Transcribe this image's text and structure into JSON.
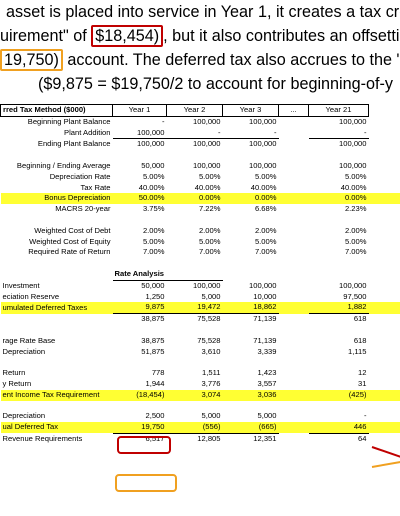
{
  "prose": {
    "line1": "asset is placed into service in Year 1, it creates a tax cre",
    "line2_pre": "uirement\" of ",
    "line2_box": "$18,454)",
    "line2_post": ", but it also contributes an offsettin",
    "line3_box": "19,750)",
    "line3_post": " account. The deferred tax also accrues to the \"A",
    "line4": "($9,875  =  $19,750/2  to  account  for  beginning-of-y"
  },
  "table": {
    "title": "rred Tax Method ($000)",
    "years": [
      "Year 1",
      "Year 2",
      "Year 3",
      "...",
      "Year 21"
    ],
    "rows": [
      {
        "label": "Beginning Plant Balance",
        "v": [
          "-",
          "100,000",
          "100,000",
          "",
          "100,000"
        ]
      },
      {
        "label": "Plant Addition",
        "v": [
          "100,000",
          "-",
          "-",
          "",
          "-"
        ]
      },
      {
        "label": "Ending Plant Balance",
        "v": [
          "100,000",
          "100,000",
          "100,000",
          "",
          "100,000"
        ]
      },
      {
        "label": "Beginning / Ending Average",
        "v": [
          "50,000",
          "100,000",
          "100,000",
          "",
          "100,000"
        ]
      },
      {
        "label": "Depreciation Rate",
        "v": [
          "5.00%",
          "5.00%",
          "5.00%",
          "",
          "5.00%"
        ]
      },
      {
        "label": "Tax Rate",
        "v": [
          "40.00%",
          "40.00%",
          "40.00%",
          "",
          "40.00%"
        ]
      },
      {
        "label": "Bonus Depreciation",
        "v": [
          "50.00%",
          "0.00%",
          "0.00%",
          "",
          "0.00%"
        ]
      },
      {
        "label": "MACRS 20-year",
        "v": [
          "3.75%",
          "7.22%",
          "6.68%",
          "",
          "2.23%"
        ]
      },
      {
        "label": "Weighted Cost of Debt",
        "v": [
          "2.00%",
          "2.00%",
          "2.00%",
          "",
          "2.00%"
        ]
      },
      {
        "label": "Weighted Cost of Equity",
        "v": [
          "5.00%",
          "5.00%",
          "5.00%",
          "",
          "5.00%"
        ]
      },
      {
        "label": "Required Rate of Return",
        "v": [
          "7.00%",
          "7.00%",
          "7.00%",
          "",
          "7.00%"
        ]
      }
    ],
    "rate_analysis": "Rate Analysis",
    "rows2": [
      {
        "label": "Investment",
        "v": [
          "50,000",
          "100,000",
          "100,000",
          "",
          "100,000"
        ]
      },
      {
        "label": "eciation Reserve",
        "v": [
          "1,250",
          "5,000",
          "10,000",
          "",
          "97,500"
        ]
      },
      {
        "label": "umulated Deferred Taxes",
        "v": [
          "9,875",
          "19,472",
          "18,862",
          "",
          "1,882"
        ]
      },
      {
        "label": "",
        "v": [
          "38,875",
          "75,528",
          "71,139",
          "",
          "618"
        ]
      },
      {
        "label": "rage Rate Base",
        "v": [
          "38,875",
          "75,528",
          "71,139",
          "",
          "618"
        ]
      },
      {
        "label": "Depreciation",
        "v": [
          "51,875",
          "3,610",
          "3,339",
          "",
          "1,115"
        ]
      },
      {
        "label": "Return",
        "v": [
          "778",
          "1,511",
          "1,423",
          "",
          "12"
        ]
      },
      {
        "label": "y Return",
        "v": [
          "1,944",
          "3,776",
          "3,557",
          "",
          "31"
        ]
      },
      {
        "label": "ent Income Tax Requirement",
        "v": [
          "(18,454)",
          "3,074",
          "3,036",
          "",
          "(425)"
        ]
      },
      {
        "label": "Depreciation",
        "v": [
          "2,500",
          "5,000",
          "5,000",
          "",
          "-"
        ]
      },
      {
        "label": "ual Deferred Tax",
        "v": [
          "19,750",
          "(556)",
          "(665)",
          "",
          "446"
        ]
      },
      {
        "label": "Revenue Requirements",
        "v": [
          "6,517",
          "12,805",
          "12,351",
          "",
          "64"
        ]
      }
    ]
  },
  "colors": {
    "highlight": "#ffff33",
    "red": "#c00000",
    "orange": "#f0a020"
  }
}
